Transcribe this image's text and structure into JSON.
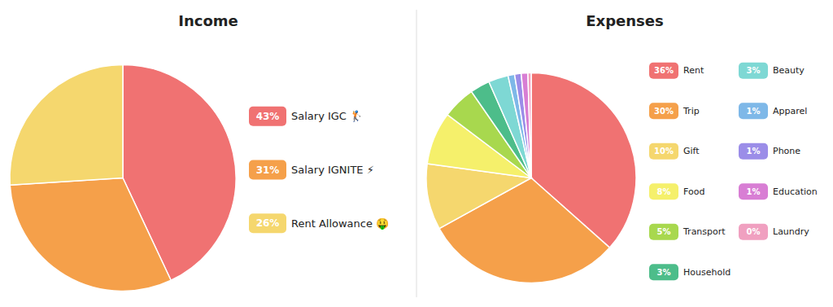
{
  "chart_data": [
    {
      "type": "pie",
      "title": "Income",
      "categories": [
        "Salary IGC 🏌",
        "Salary IGNITE ⚡",
        "Rent Allowance 🤑"
      ],
      "values": [
        43,
        31,
        26
      ],
      "value_labels": [
        "43%",
        "31%",
        "26%"
      ],
      "colors": [
        "#F07272",
        "#F5A04A",
        "#F5D76E"
      ],
      "legend": "right"
    },
    {
      "type": "pie",
      "title": "Expenses",
      "categories": [
        "Rent",
        "Trip",
        "Gift",
        "Food",
        "Transport",
        "Household",
        "Beauty",
        "Apparel",
        "Phone",
        "Education",
        "Laundry"
      ],
      "values": [
        36,
        30,
        10,
        8,
        5,
        3,
        3,
        1,
        1,
        1,
        0.5
      ],
      "value_labels": [
        "36%",
        "30%",
        "10%",
        "8%",
        "5%",
        "3%",
        "3%",
        "1%",
        "1%",
        "1%",
        "0%"
      ],
      "colors": [
        "#F07272",
        "#F5A04A",
        "#F5D76E",
        "#F5F06B",
        "#A8D84E",
        "#4DBD8A",
        "#7ED8D4",
        "#7EB8E8",
        "#9B8DE8",
        "#D87ED4",
        "#F0A0C0"
      ],
      "legend": "right"
    }
  ]
}
